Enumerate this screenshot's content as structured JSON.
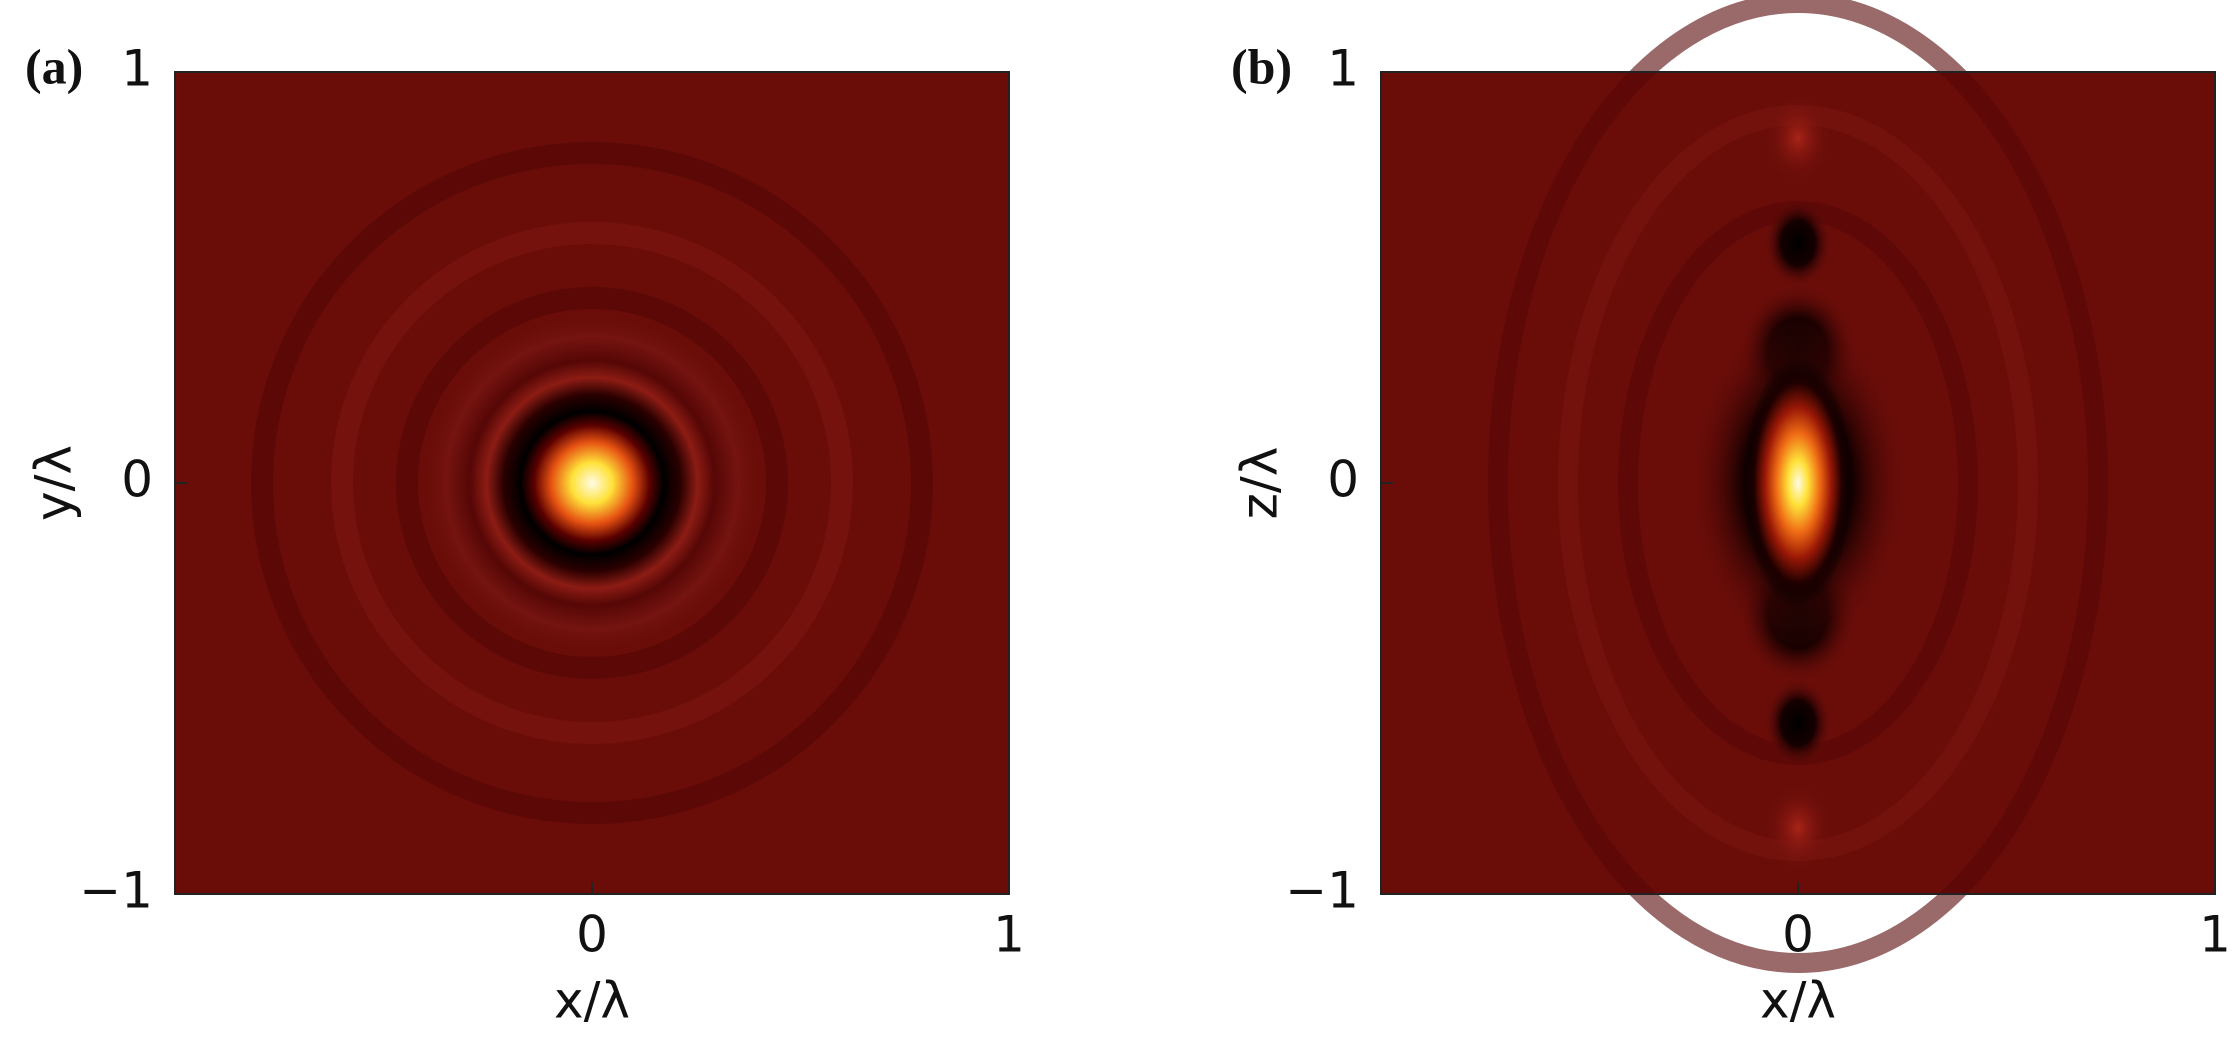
{
  "chart_data": [
    {
      "type": "heatmap",
      "panel_label": "(a)",
      "xlabel": "x/λ",
      "ylabel": "y/λ",
      "xlim": [
        -1,
        1
      ],
      "ylim": [
        -1,
        1
      ],
      "xticks": [
        0,
        1
      ],
      "yticks": [
        {
          "value": -1,
          "label": "−1"
        },
        0,
        1
      ]
    },
    {
      "type": "heatmap",
      "panel_label": "(b)",
      "xlabel": "x/λ",
      "ylabel": "z/λ",
      "xlim": [
        -1,
        1
      ],
      "ylim": [
        -1,
        1
      ],
      "xticks": [
        0,
        1
      ],
      "yticks": [
        {
          "value": -1,
          "label": "−1"
        },
        0,
        1
      ]
    }
  ]
}
